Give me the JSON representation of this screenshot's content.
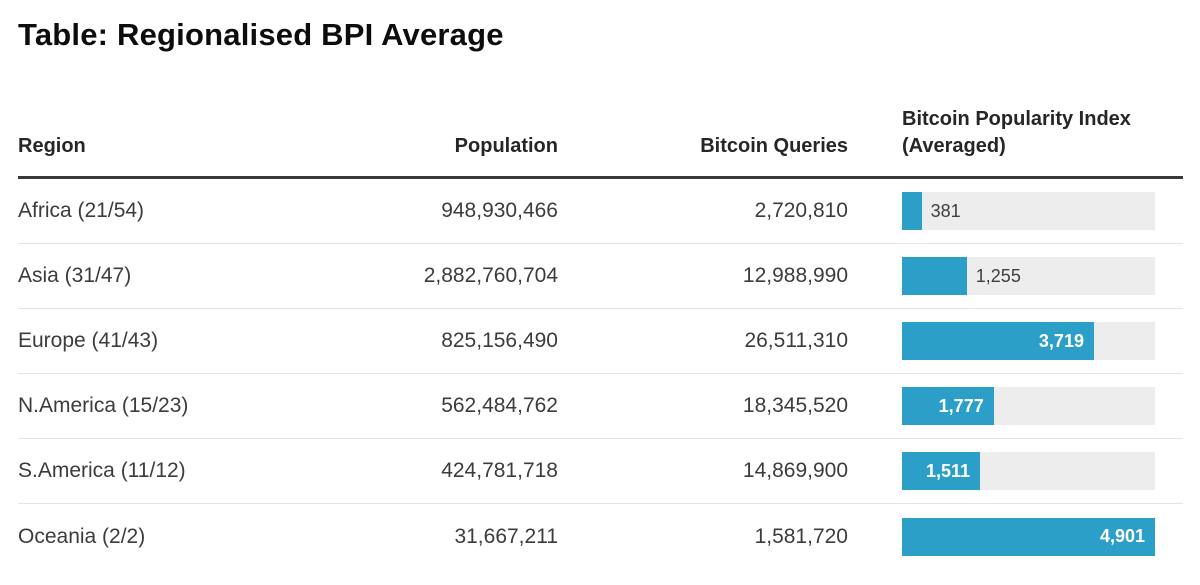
{
  "page": {
    "title": "Table: Regionalised BPI Average"
  },
  "colors": {
    "bar_fill": "#2b9fc8",
    "bar_track": "#ededed",
    "header_rule": "#383838",
    "row_divider": "#e4e4e4",
    "title_text": "#0d0d0d",
    "cell_text": "#3c3c3c",
    "bar_label_inside": "#ffffff",
    "bar_label_outside": "#3e3e3e"
  },
  "table": {
    "headers": {
      "region": "Region",
      "population": "Population",
      "queries": "Bitcoin Queries",
      "bpi": "Bitcoin Popularity Index (Averaged)"
    },
    "bpi_max": 4901,
    "rows": [
      {
        "region": "Africa (21/54)",
        "population": "948,930,466",
        "queries": "2,720,810",
        "bpi_label": "381",
        "bpi_value": 381,
        "label_position": "outside"
      },
      {
        "region": "Asia (31/47)",
        "population": "2,882,760,704",
        "queries": "12,988,990",
        "bpi_label": "1,255",
        "bpi_value": 1255,
        "label_position": "outside"
      },
      {
        "region": "Europe (41/43)",
        "population": "825,156,490",
        "queries": "26,511,310",
        "bpi_label": "3,719",
        "bpi_value": 3719,
        "label_position": "inside"
      },
      {
        "region": "N.America (15/23)",
        "population": "562,484,762",
        "queries": "18,345,520",
        "bpi_label": "1,777",
        "bpi_value": 1777,
        "label_position": "inside"
      },
      {
        "region": "S.America (11/12)",
        "population": "424,781,718",
        "queries": "14,869,900",
        "bpi_label": "1,511",
        "bpi_value": 1511,
        "label_position": "inside"
      },
      {
        "region": "Oceania (2/2)",
        "population": "31,667,211",
        "queries": "1,581,720",
        "bpi_label": "4,901",
        "bpi_value": 4901,
        "label_position": "inside"
      }
    ]
  },
  "chart_data": {
    "type": "table",
    "title": "Table: Regionalised BPI Average",
    "columns": [
      "Region",
      "Population",
      "Bitcoin Queries",
      "Bitcoin Popularity Index (Averaged)"
    ],
    "rows": [
      [
        "Africa (21/54)",
        948930466,
        2720810,
        381
      ],
      [
        "Asia (31/47)",
        2882760704,
        12988990,
        1255
      ],
      [
        "Europe (41/43)",
        825156490,
        26511310,
        3719
      ],
      [
        "N.America (15/23)",
        562484762,
        18345520,
        1777
      ],
      [
        "S.America (11/12)",
        424781718,
        14869900,
        1511
      ],
      [
        "Oceania (2/2)",
        31667211,
        1581720,
        4901
      ]
    ],
    "embedded_bar_chart": {
      "type": "bar",
      "orientation": "horizontal",
      "column": "Bitcoin Popularity Index (Averaged)",
      "categories": [
        "Africa (21/54)",
        "Asia (31/47)",
        "Europe (41/43)",
        "N.America (15/23)",
        "S.America (11/12)",
        "Oceania (2/2)"
      ],
      "values": [
        381,
        1255,
        3719,
        1777,
        1511,
        4901
      ],
      "xlim": [
        0,
        4901
      ],
      "bar_color": "#2b9fc8",
      "track_color": "#ededed"
    }
  }
}
